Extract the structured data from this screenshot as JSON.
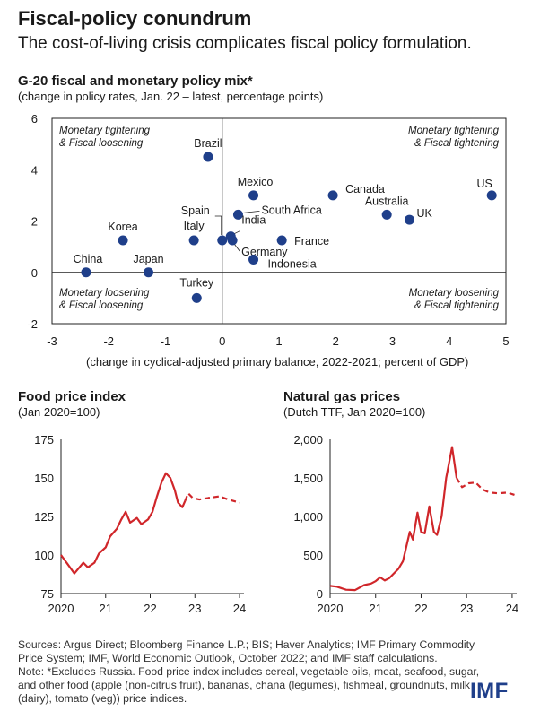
{
  "header": {
    "title": "Fiscal-policy conundrum",
    "subtitle": "The cost-of-living crisis complicates fiscal policy formulation."
  },
  "footer": {
    "sources": "Sources: Argus Direct; Bloomberg Finance L.P.; BIS; Haver Analytics; IMF Primary Commodity Price System; IMF, World Economic Outlook, October 2022; and IMF staff calculations.",
    "note": "Note: *Excludes Russia. Food price index includes cereal, vegetable oils, meat, seafood, sugar, and other food (apple (non-citrus fruit), bananas, chana (legumes), fishmeal, groundnuts, milk (dairy), tomato (veg)) price indices.",
    "logo": "IMF"
  },
  "colors": {
    "point": "#1f3f8a",
    "line": "#d0262a",
    "axis": "#222222",
    "text": "#1a1a1a"
  },
  "chart_data": [
    {
      "type": "scatter",
      "title": "G-20 fiscal and monetary policy mix*",
      "subtitle": "(change in policy rates, Jan. 22 – latest, percentage points)",
      "xlabel": "(change in cyclical-adjusted primary balance, 2022-2021; percent of GDP)",
      "xlim": [
        -3,
        5
      ],
      "ylim": [
        -2,
        6
      ],
      "xticks": [
        -3,
        -2,
        -1,
        0,
        1,
        2,
        3,
        4,
        5
      ],
      "yticks": [
        -2,
        0,
        2,
        4,
        6
      ],
      "quadrants": {
        "top_left": [
          "Monetary tightening",
          "& Fiscal loosening"
        ],
        "top_right": [
          "Monetary tightening",
          "& Fiscal tightening"
        ],
        "bottom_left": [
          "Monetary loosening",
          "& Fiscal loosening"
        ],
        "bottom_right": [
          "Monetary loosening",
          "& Fiscal tightening"
        ]
      },
      "points": [
        {
          "label": "Brazil",
          "x": -0.25,
          "y": 4.5
        },
        {
          "label": "Mexico",
          "x": 0.55,
          "y": 3.0
        },
        {
          "label": "Canada",
          "x": 1.95,
          "y": 3.0
        },
        {
          "label": "US",
          "x": 4.75,
          "y": 3.0
        },
        {
          "label": "South Africa",
          "x": 0.28,
          "y": 2.25
        },
        {
          "label": "Australia",
          "x": 2.9,
          "y": 2.25
        },
        {
          "label": "UK",
          "x": 3.3,
          "y": 2.05
        },
        {
          "label": "Spain",
          "x": 0.0,
          "y": 1.25
        },
        {
          "label": "India",
          "x": 0.15,
          "y": 1.4
        },
        {
          "label": "Germany",
          "x": 0.18,
          "y": 1.25
        },
        {
          "label": "France",
          "x": 1.05,
          "y": 1.25
        },
        {
          "label": "Italy",
          "x": -0.5,
          "y": 1.25
        },
        {
          "label": "Korea",
          "x": -1.75,
          "y": 1.25
        },
        {
          "label": "Indonesia",
          "x": 0.55,
          "y": 0.5
        },
        {
          "label": "China",
          "x": -2.4,
          "y": 0.0
        },
        {
          "label": "Japan",
          "x": -1.3,
          "y": 0.0
        },
        {
          "label": "Turkey",
          "x": -0.45,
          "y": -1.0
        }
      ]
    },
    {
      "type": "line",
      "title": "Food price index",
      "subtitle": "(Jan 2020=100)",
      "xlim": [
        2020,
        2024.1
      ],
      "ylim": [
        75,
        175
      ],
      "xticks": [
        {
          "v": 2020,
          "label": "2020"
        },
        {
          "v": 2021,
          "label": "21"
        },
        {
          "v": 2022,
          "label": "22"
        },
        {
          "v": 2023,
          "label": "23"
        },
        {
          "v": 2024,
          "label": "24"
        }
      ],
      "yticks": [
        75,
        100,
        125,
        150,
        175
      ],
      "series": [
        {
          "style": "solid",
          "points": [
            [
              2020.0,
              100
            ],
            [
              2020.15,
              94
            ],
            [
              2020.3,
              88
            ],
            [
              2020.5,
              95
            ],
            [
              2020.6,
              92
            ],
            [
              2020.75,
              95
            ],
            [
              2020.85,
              101
            ],
            [
              2021.0,
              105
            ],
            [
              2021.1,
              112
            ],
            [
              2021.25,
              117
            ],
            [
              2021.35,
              123
            ],
            [
              2021.45,
              128
            ],
            [
              2021.55,
              121
            ],
            [
              2021.7,
              124
            ],
            [
              2021.8,
              120
            ],
            [
              2021.95,
              123
            ],
            [
              2022.05,
              128
            ],
            [
              2022.15,
              138
            ],
            [
              2022.25,
              147
            ],
            [
              2022.35,
              153
            ],
            [
              2022.45,
              150
            ],
            [
              2022.55,
              142
            ],
            [
              2022.62,
              134
            ],
            [
              2022.72,
              131
            ],
            [
              2022.78,
              135
            ]
          ]
        },
        {
          "style": "dashed",
          "points": [
            [
              2022.78,
              135
            ],
            [
              2022.85,
              140
            ],
            [
              2022.95,
              137
            ],
            [
              2023.1,
              136
            ],
            [
              2023.3,
              137
            ],
            [
              2023.55,
              138
            ],
            [
              2023.75,
              136
            ],
            [
              2024.0,
              134
            ]
          ]
        }
      ]
    },
    {
      "type": "line",
      "title": "Natural gas prices",
      "subtitle": "(Dutch TTF, Jan 2020=100)",
      "xlim": [
        2020,
        2024.1
      ],
      "ylim": [
        0,
        2000
      ],
      "xticks": [
        {
          "v": 2020,
          "label": "2020"
        },
        {
          "v": 2021,
          "label": "21"
        },
        {
          "v": 2022,
          "label": "22"
        },
        {
          "v": 2023,
          "label": "23"
        },
        {
          "v": 2024,
          "label": "24"
        }
      ],
      "yticks": [
        0,
        500,
        1000,
        1500,
        2000
      ],
      "ytick_labels": [
        "0",
        "500",
        "1,000",
        "1,500",
        "2,000"
      ],
      "series": [
        {
          "style": "solid",
          "points": [
            [
              2020.0,
              100
            ],
            [
              2020.15,
              90
            ],
            [
              2020.35,
              50
            ],
            [
              2020.55,
              45
            ],
            [
              2020.75,
              110
            ],
            [
              2020.9,
              130
            ],
            [
              2021.0,
              160
            ],
            [
              2021.1,
              210
            ],
            [
              2021.2,
              170
            ],
            [
              2021.3,
              200
            ],
            [
              2021.4,
              260
            ],
            [
              2021.5,
              320
            ],
            [
              2021.6,
              420
            ],
            [
              2021.75,
              800
            ],
            [
              2021.82,
              700
            ],
            [
              2021.92,
              1050
            ],
            [
              2022.0,
              800
            ],
            [
              2022.08,
              780
            ],
            [
              2022.18,
              1130
            ],
            [
              2022.28,
              800
            ],
            [
              2022.35,
              760
            ],
            [
              2022.45,
              1000
            ],
            [
              2022.55,
              1500
            ],
            [
              2022.68,
              1900
            ],
            [
              2022.78,
              1500
            ]
          ]
        },
        {
          "style": "dashed",
          "points": [
            [
              2022.78,
              1500
            ],
            [
              2022.9,
              1380
            ],
            [
              2023.05,
              1430
            ],
            [
              2023.2,
              1440
            ],
            [
              2023.35,
              1350
            ],
            [
              2023.5,
              1310
            ],
            [
              2023.7,
              1300
            ],
            [
              2023.9,
              1310
            ],
            [
              2024.0,
              1290
            ],
            [
              2024.1,
              1270
            ]
          ]
        }
      ]
    }
  ]
}
